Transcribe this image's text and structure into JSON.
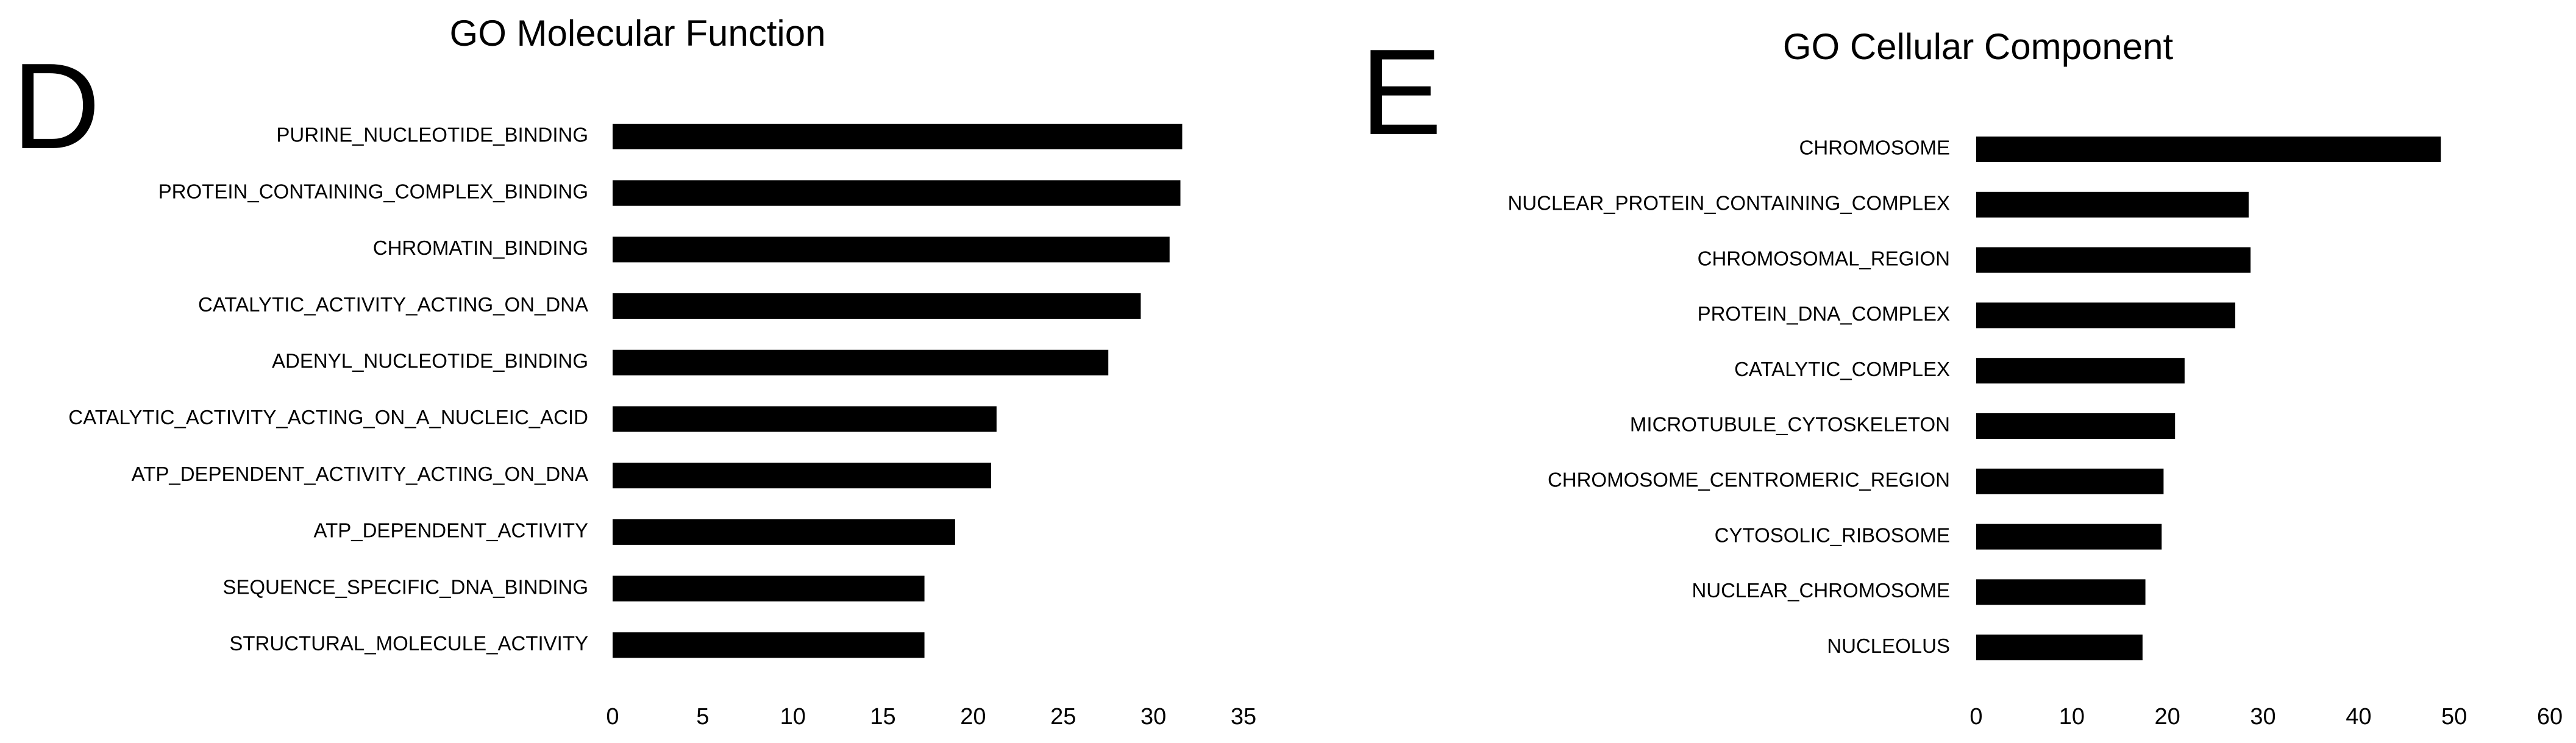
{
  "chart_data": [
    {
      "type": "bar",
      "orientation": "horizontal",
      "panel": "D",
      "title": "GO Molecular Function",
      "categories": [
        "PURINE_NUCLEOTIDE_BINDING",
        "PROTEIN_CONTAINING_COMPLEX_BINDING",
        "CHROMATIN_BINDING",
        "CATALYTIC_ACTIVITY_ACTING_ON_DNA",
        "ADENYL_NUCLEOTIDE_BINDING",
        "CATALYTIC_ACTIVITY_ACTING_ON_A_NUCLEIC_ACID",
        "ATP_DEPENDENT_ACTIVITY_ACTING_ON_DNA",
        "ATP_DEPENDENT_ACTIVITY",
        "SEQUENCE_SPECIFIC_DNA_BINDING",
        "STRUCTURAL_MOLECULE_ACTIVITY"
      ],
      "values": [
        31.6,
        31.5,
        30.9,
        29.3,
        27.5,
        21.3,
        21.0,
        19.0,
        17.3,
        17.3
      ],
      "color": "#000000",
      "xlim": [
        0,
        35
      ],
      "xticks": [
        0,
        5,
        10,
        15,
        20,
        25,
        30,
        35
      ],
      "grid": false
    },
    {
      "type": "bar",
      "orientation": "horizontal",
      "panel": "E",
      "title": "GO  Cellular Component",
      "categories": [
        "CHROMOSOME",
        "NUCLEAR_PROTEIN_CONTAINING_COMPLEX",
        "CHROMOSOMAL_REGION",
        "PROTEIN_DNA_COMPLEX",
        "CATALYTIC_COMPLEX",
        "MICROTUBULE_CYTOSKELETON",
        "CHROMOSOME_CENTROMERIC_REGION",
        "CYTOSOLIC_RIBOSOME",
        "NUCLEAR_CHROMOSOME",
        "NUCLEOLUS"
      ],
      "values": [
        48.6,
        28.5,
        28.7,
        27.1,
        21.8,
        20.8,
        19.6,
        19.4,
        17.7,
        17.4
      ],
      "color": "#000000",
      "xlim": [
        0,
        60
      ],
      "xticks": [
        0,
        10,
        20,
        30,
        40,
        50,
        60
      ],
      "grid": false
    }
  ]
}
